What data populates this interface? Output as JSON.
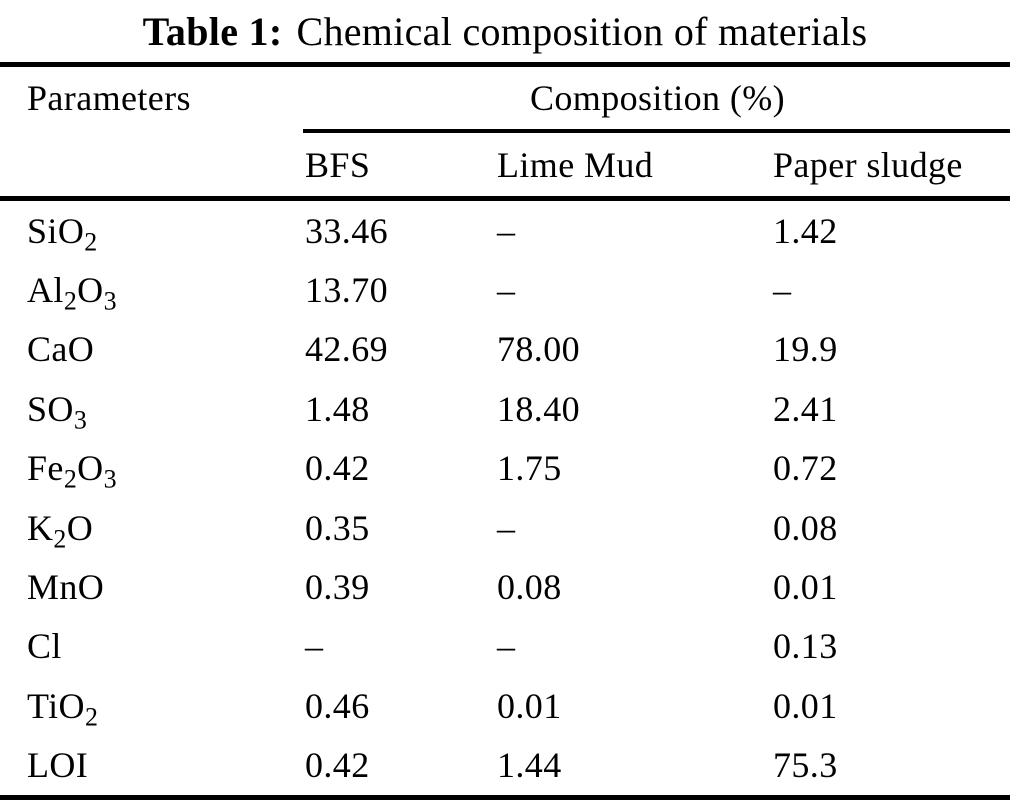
{
  "title": {
    "label": "Table 1:",
    "caption": "Chemical composition of materials"
  },
  "table": {
    "col1_header": "Parameters",
    "group_header": "Composition (%)",
    "columns": [
      "BFS",
      "Lime Mud",
      "Paper sludge"
    ],
    "rows": [
      {
        "parameter": "SiO_2",
        "values": [
          "33.46",
          "–",
          "1.42"
        ]
      },
      {
        "parameter": "Al_2O_3",
        "values": [
          "13.70",
          "–",
          "–"
        ]
      },
      {
        "parameter": "CaO",
        "values": [
          "42.69",
          "78.00",
          "19.9"
        ]
      },
      {
        "parameter": "SO_3",
        "values": [
          "1.48",
          "18.40",
          "2.41"
        ]
      },
      {
        "parameter": "Fe_2O_3",
        "values": [
          "0.42",
          "1.75",
          "0.72"
        ]
      },
      {
        "parameter": "K_2O",
        "values": [
          "0.35",
          "–",
          "0.08"
        ]
      },
      {
        "parameter": "MnO",
        "values": [
          "0.39",
          "0.08",
          "0.01"
        ]
      },
      {
        "parameter": "Cl",
        "values": [
          "–",
          "–",
          "0.13"
        ]
      },
      {
        "parameter": "TiO_2",
        "values": [
          "0.46",
          "0.01",
          "0.01"
        ]
      },
      {
        "parameter": "LOI",
        "values": [
          "0.42",
          "1.44",
          "75.3"
        ]
      }
    ]
  }
}
